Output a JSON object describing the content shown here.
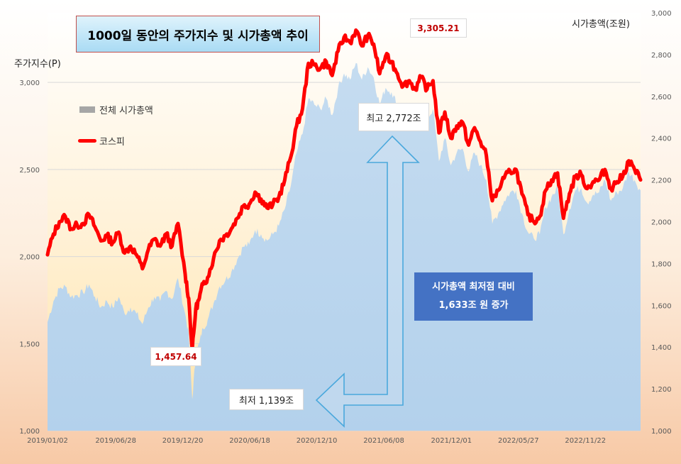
{
  "chart_data": {
    "type": "line+area",
    "title": "1000일 동안의 주가지수 및 시가총액 추이",
    "left_axis": {
      "label": "주가지수(P)",
      "range": [
        1000,
        3400
      ],
      "ticks": [
        "1,000",
        "1,500",
        "2,000",
        "2,500",
        "3,000"
      ],
      "tick_values": [
        1000,
        1500,
        2000,
        2500,
        3000
      ]
    },
    "right_axis": {
      "label": "시가총액(조원)",
      "range": [
        1000,
        3000
      ],
      "ticks": [
        "1,000",
        "1,200",
        "1,400",
        "1,600",
        "1,800",
        "2,000",
        "2,200",
        "2,400",
        "2,600",
        "2,800",
        "3,000"
      ],
      "tick_values": [
        1000,
        1200,
        1400,
        1600,
        1800,
        2000,
        2200,
        2400,
        2600,
        2800,
        3000
      ]
    },
    "x_ticks": [
      "2019/01/02",
      "2019/06/28",
      "2019/12/20",
      "2020/06/18",
      "2020/12/10",
      "2021/06/08",
      "2021/12/01",
      "2022/05/27",
      "2022/11/22"
    ],
    "x_range": [
      0,
      1000
    ],
    "x_tick_positions": [
      0,
      115,
      228,
      341,
      454,
      567,
      681,
      794,
      907
    ],
    "series": [
      {
        "name": "코스피",
        "axis": "left",
        "color": "#ff0000",
        "x": [
          0,
          10,
          20,
          30,
          40,
          50,
          60,
          70,
          80,
          90,
          100,
          110,
          120,
          130,
          140,
          150,
          160,
          170,
          180,
          190,
          200,
          210,
          220,
          232,
          238,
          244,
          250,
          256,
          262,
          270,
          280,
          290,
          300,
          310,
          320,
          330,
          340,
          350,
          360,
          370,
          380,
          390,
          400,
          410,
          420,
          430,
          440,
          450,
          460,
          470,
          480,
          490,
          500,
          510,
          520,
          530,
          540,
          550,
          560,
          570,
          580,
          590,
          600,
          610,
          620,
          630,
          640,
          650,
          660,
          670,
          680,
          690,
          700,
          710,
          720,
          730,
          740,
          750,
          760,
          770,
          780,
          790,
          800,
          810,
          820,
          830,
          840,
          850,
          860,
          870,
          880,
          890,
          900,
          910,
          920,
          930,
          940,
          950,
          960,
          970,
          980,
          990,
          1000
        ],
        "y": [
          2010,
          2130,
          2200,
          2230,
          2160,
          2180,
          2190,
          2240,
          2170,
          2090,
          2120,
          2080,
          2140,
          2020,
          2060,
          2010,
          1930,
          2040,
          2100,
          2060,
          2130,
          2060,
          2190,
          1900,
          1760,
          1460,
          1700,
          1760,
          1840,
          1880,
          1990,
          2090,
          2120,
          2160,
          2220,
          2290,
          2300,
          2370,
          2330,
          2280,
          2300,
          2340,
          2440,
          2570,
          2750,
          2850,
          3110,
          3100,
          3080,
          3120,
          3040,
          3180,
          3260,
          3230,
          3300,
          3210,
          3270,
          3220,
          3050,
          3150,
          3120,
          3050,
          2980,
          3010,
          2960,
          3030,
          2960,
          3010,
          2710,
          2830,
          2680,
          2750,
          2770,
          2640,
          2740,
          2660,
          2580,
          2320,
          2380,
          2450,
          2490,
          2500,
          2360,
          2240,
          2200,
          2230,
          2380,
          2440,
          2480,
          2220,
          2360,
          2460,
          2470,
          2390,
          2430,
          2440,
          2500,
          2390,
          2430,
          2460,
          2550,
          2500,
          2440
        ]
      },
      {
        "name": "전체 시가총액",
        "axis": "right",
        "color": "#a6a6a6",
        "x": [
          0,
          10,
          20,
          30,
          40,
          50,
          60,
          70,
          80,
          90,
          100,
          110,
          120,
          130,
          140,
          150,
          160,
          170,
          180,
          190,
          200,
          210,
          220,
          232,
          238,
          244,
          250,
          256,
          262,
          270,
          280,
          290,
          300,
          310,
          320,
          330,
          340,
          350,
          360,
          370,
          380,
          390,
          400,
          410,
          420,
          430,
          440,
          450,
          460,
          470,
          480,
          490,
          500,
          510,
          520,
          530,
          540,
          550,
          560,
          570,
          580,
          590,
          600,
          610,
          620,
          630,
          640,
          650,
          660,
          670,
          680,
          690,
          700,
          710,
          720,
          730,
          740,
          750,
          760,
          770,
          780,
          790,
          800,
          810,
          820,
          830,
          840,
          850,
          860,
          870,
          880,
          890,
          900,
          910,
          920,
          930,
          940,
          950,
          960,
          970,
          980,
          990,
          1000
        ],
        "y": [
          1520,
          1620,
          1680,
          1690,
          1640,
          1650,
          1660,
          1700,
          1640,
          1590,
          1620,
          1590,
          1640,
          1560,
          1590,
          1560,
          1510,
          1590,
          1640,
          1620,
          1670,
          1630,
          1730,
          1560,
          1460,
          1150,
          1360,
          1420,
          1490,
          1530,
          1610,
          1690,
          1720,
          1760,
          1820,
          1880,
          1890,
          1960,
          1940,
          1910,
          1940,
          1980,
          2060,
          2170,
          2330,
          2420,
          2590,
          2560,
          2540,
          2590,
          2510,
          2640,
          2710,
          2680,
          2760,
          2680,
          2740,
          2690,
          2560,
          2640,
          2620,
          2560,
          2500,
          2530,
          2480,
          2550,
          2490,
          2540,
          2290,
          2400,
          2270,
          2330,
          2350,
          2240,
          2330,
          2270,
          2200,
          1990,
          2040,
          2100,
          2140,
          2150,
          2040,
          1950,
          1920,
          1940,
          2070,
          2120,
          2160,
          1940,
          2060,
          2150,
          2160,
          2090,
          2130,
          2140,
          2200,
          2100,
          2140,
          2160,
          2240,
          2200,
          2150
        ]
      }
    ],
    "annotations": {
      "peak_index": "3,305.21",
      "low_index": "1,457.64",
      "peak_cap": "최고 2,772조",
      "low_cap": "최저 1,139조",
      "increase_line1": "시가총액 최저점 대비",
      "increase_line2": "1,633조 원  증가"
    },
    "legend_placement": "top-left",
    "grid": true
  }
}
